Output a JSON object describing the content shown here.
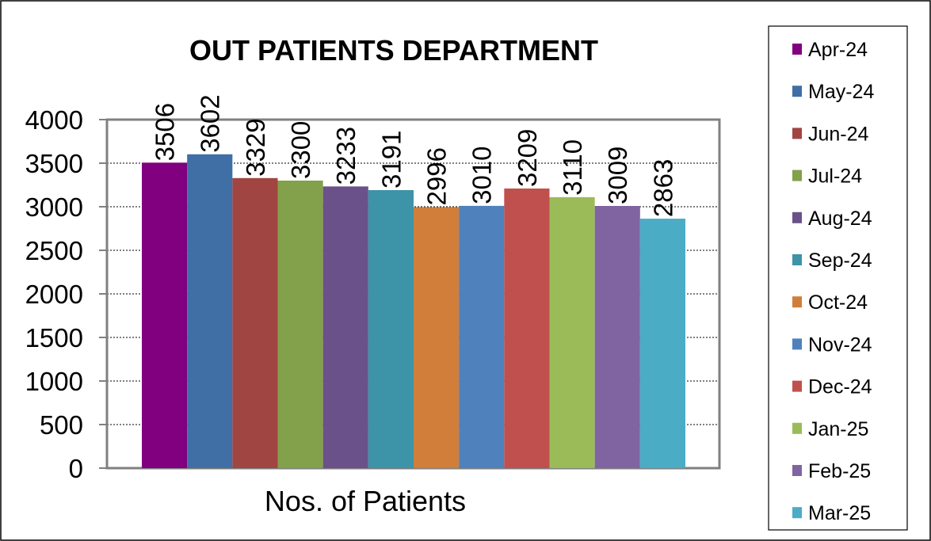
{
  "chart_data": {
    "type": "bar",
    "title": "OUT PATIENTS DEPARTMENT",
    "xlabel": "Nos. of Patients",
    "ylabel": "",
    "ylim": [
      0,
      4000
    ],
    "yticks": [
      0,
      500,
      1000,
      1500,
      2000,
      2500,
      3000,
      3500,
      4000
    ],
    "grid": true,
    "legend_position": "right",
    "categories": [
      "Nos. of Patients"
    ],
    "series": [
      {
        "name": "Apr-24",
        "value": 3506,
        "color": "#800080"
      },
      {
        "name": "May-24",
        "value": 3602,
        "color": "#3F6FA5"
      },
      {
        "name": "Jun-24",
        "value": 3329,
        "color": "#A14542"
      },
      {
        "name": "Jul-24",
        "value": 3300,
        "color": "#83A04A"
      },
      {
        "name": "Aug-24",
        "value": 3233,
        "color": "#6A5189"
      },
      {
        "name": "Sep-24",
        "value": 3191,
        "color": "#3D93A7"
      },
      {
        "name": "Oct-24",
        "value": 2996,
        "color": "#D07E3A"
      },
      {
        "name": "Nov-24",
        "value": 3010,
        "color": "#4F81BD"
      },
      {
        "name": "Dec-24",
        "value": 3209,
        "color": "#C0504D"
      },
      {
        "name": "Jan-25",
        "value": 3110,
        "color": "#9BBB59"
      },
      {
        "name": "Feb-25",
        "value": 3009,
        "color": "#8064A2"
      },
      {
        "name": "Mar-25",
        "value": 2863,
        "color": "#4BACC6"
      }
    ]
  }
}
